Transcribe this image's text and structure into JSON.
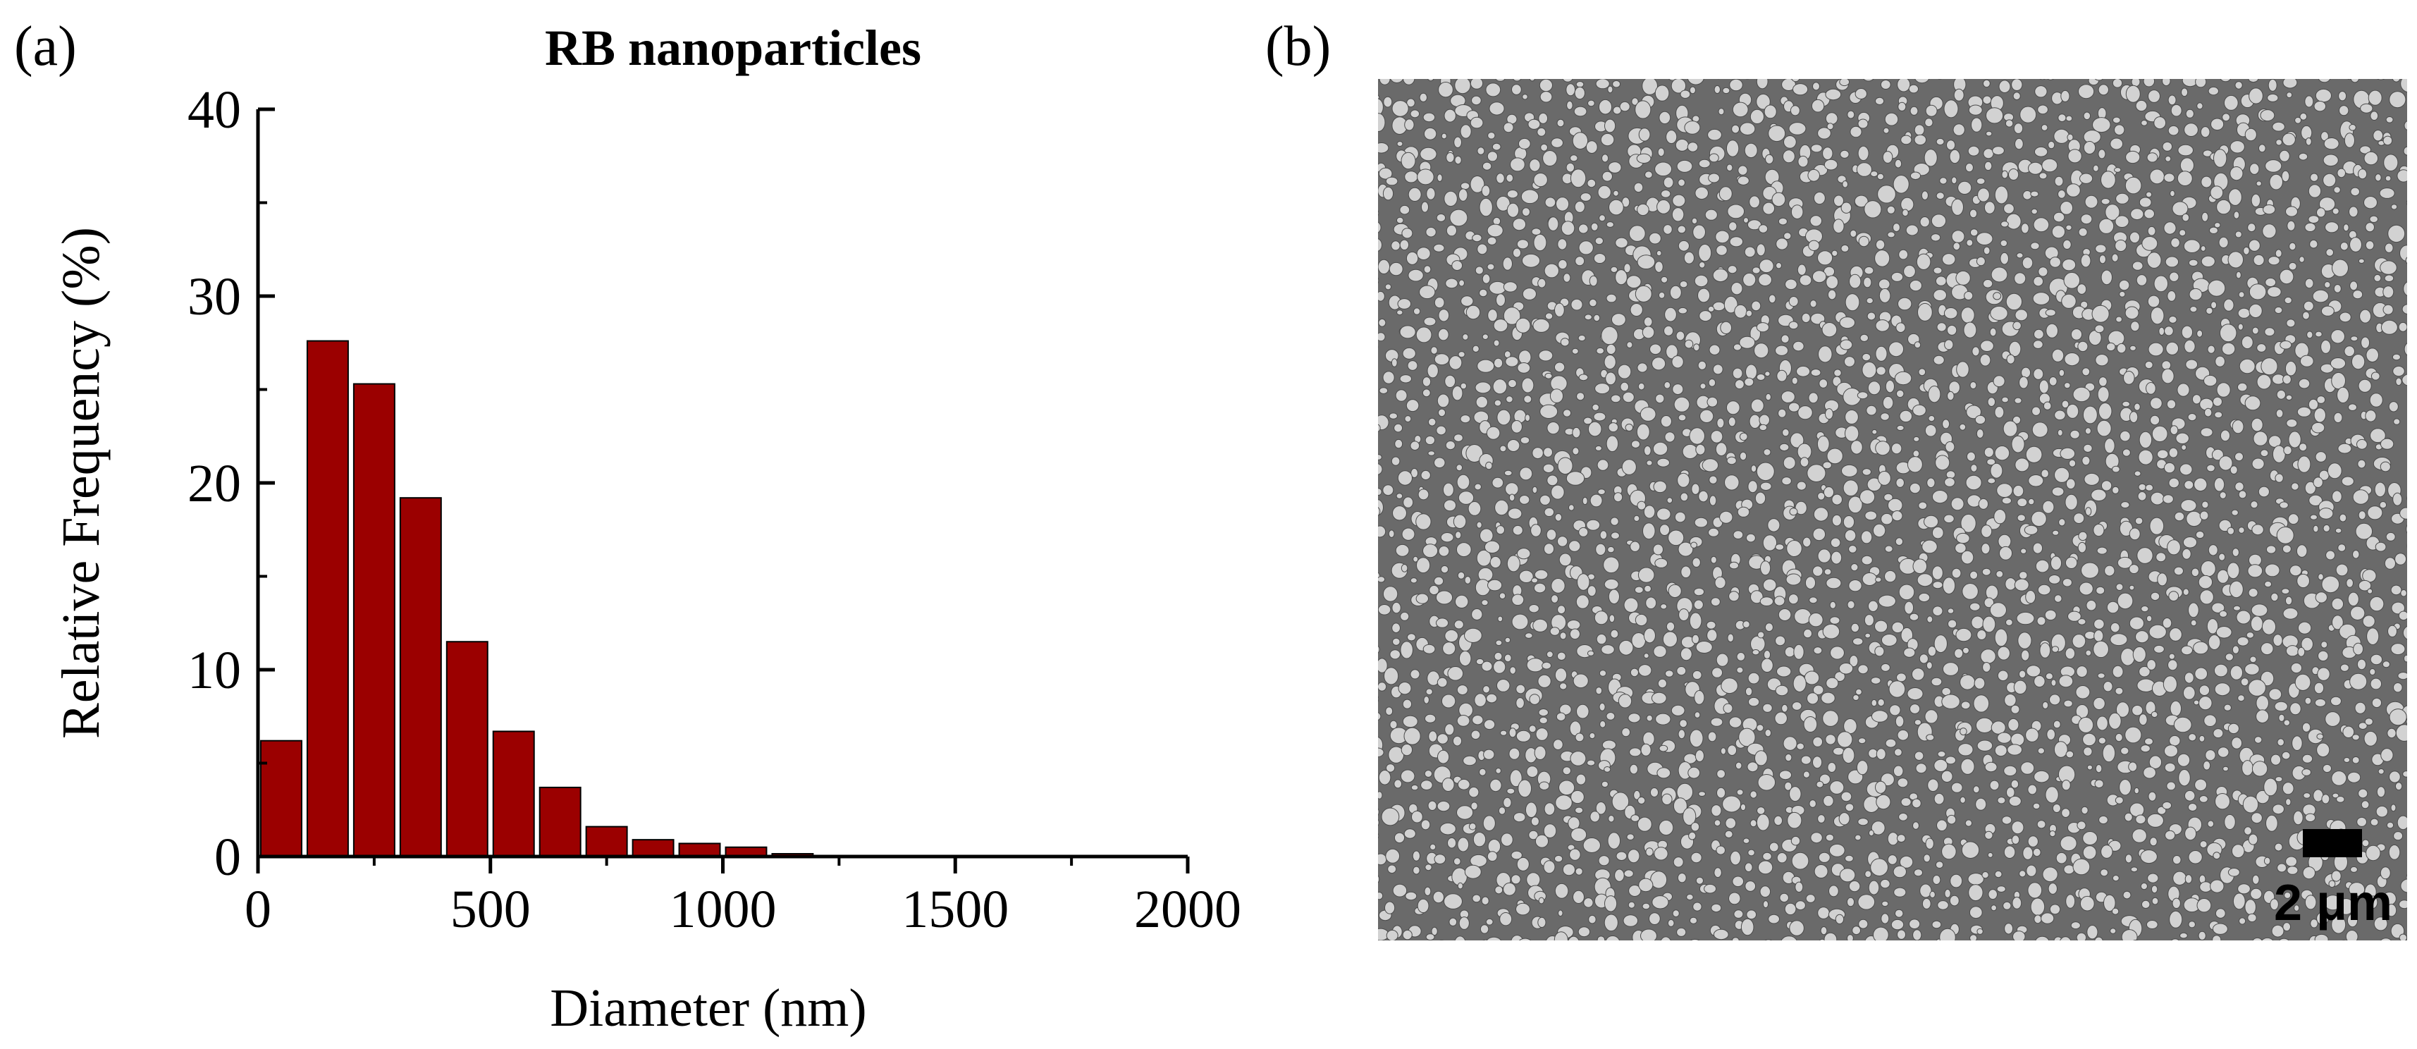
{
  "panels": {
    "a": {
      "label": "(a)"
    },
    "b": {
      "label": "(b)",
      "scale_bar_label": "2 μm",
      "scale_bar_value_um": 2,
      "colors": {
        "background": "#6a6a6a",
        "particle": "#d2d2d2",
        "scale_bar": "#000000"
      }
    }
  },
  "chart_data": {
    "type": "bar",
    "title": "RB nanoparticles",
    "xlabel": "Diameter (nm)",
    "ylabel": "Relative Frequency (%)",
    "xlim": [
      0,
      2000
    ],
    "ylim": [
      0,
      40
    ],
    "xticks": [
      0,
      500,
      1000,
      1500,
      2000
    ],
    "yticks": [
      0,
      10,
      20,
      30,
      40
    ],
    "bin_width": 100,
    "bins": [
      {
        "x0": 0,
        "x1": 100,
        "value": 6.2
      },
      {
        "x0": 100,
        "x1": 200,
        "value": 27.6
      },
      {
        "x0": 200,
        "x1": 300,
        "value": 25.3
      },
      {
        "x0": 300,
        "x1": 400,
        "value": 19.2
      },
      {
        "x0": 400,
        "x1": 500,
        "value": 11.5
      },
      {
        "x0": 500,
        "x1": 600,
        "value": 6.7
      },
      {
        "x0": 600,
        "x1": 700,
        "value": 3.7
      },
      {
        "x0": 700,
        "x1": 800,
        "value": 1.6
      },
      {
        "x0": 800,
        "x1": 900,
        "value": 0.9
      },
      {
        "x0": 900,
        "x1": 1000,
        "value": 0.7
      },
      {
        "x0": 1000,
        "x1": 1100,
        "value": 0.5
      },
      {
        "x0": 1100,
        "x1": 1200,
        "value": 0.15
      },
      {
        "x0": 1200,
        "x1": 1300,
        "value": 0.05
      },
      {
        "x0": 1300,
        "x1": 1400,
        "value": 0.05
      },
      {
        "x0": 1400,
        "x1": 1500,
        "value": 0.05
      },
      {
        "x0": 1500,
        "x1": 1600,
        "value": 0.05
      },
      {
        "x0": 1600,
        "x1": 1700,
        "value": 0.05
      },
      {
        "x0": 1700,
        "x1": 1800,
        "value": 0.05
      },
      {
        "x0": 1800,
        "x1": 1900,
        "value": 0.05
      },
      {
        "x0": 1900,
        "x1": 2000,
        "value": 0.05
      }
    ],
    "colors": {
      "bar": "#9b0000",
      "bar_edge": "#000000",
      "axis": "#000000"
    },
    "grid": false,
    "legend": "none"
  }
}
